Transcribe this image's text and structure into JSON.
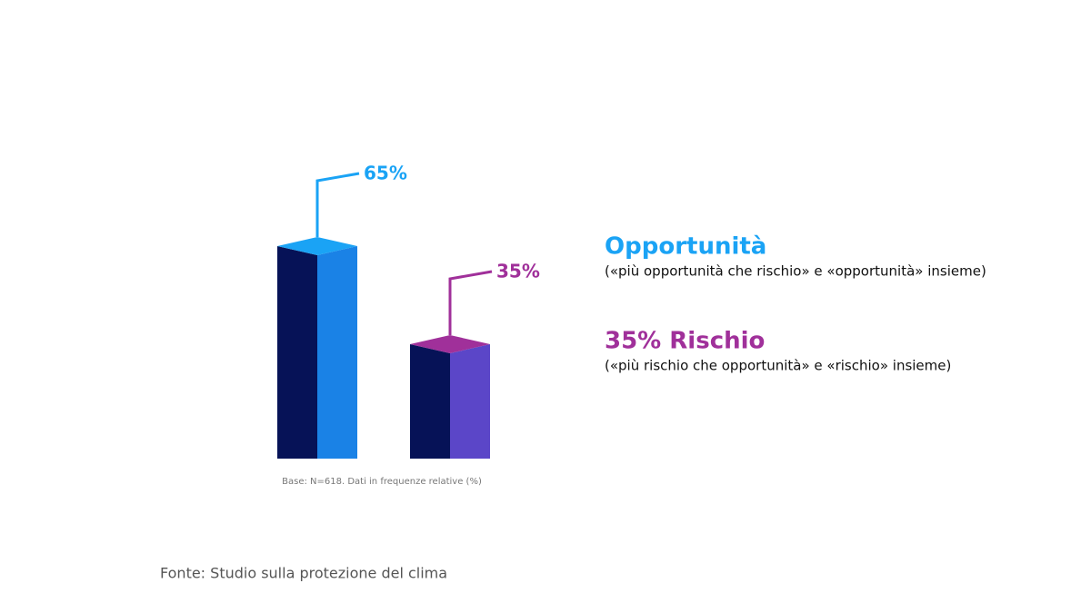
{
  "chart_data": {
    "type": "bar",
    "categories": [
      "Opportunità",
      "35% Rischio"
    ],
    "descriptions": [
      "(«più opportunità che rischio» e «opportunità» insieme)",
      "(«più rischio che opportunità» e «rischio» insieme)"
    ],
    "values": [
      65,
      35
    ],
    "value_labels": [
      "65%",
      "35%"
    ],
    "colors": [
      "#1aa3f5",
      "#a0309a"
    ],
    "side_colors": [
      "#1a82e6",
      "#5b46c8"
    ],
    "front_color": "#061257",
    "note": "Base: N=618. Dati in frequenze relative (%)",
    "source": "Fonte: Studio sulla protezione del clima"
  }
}
